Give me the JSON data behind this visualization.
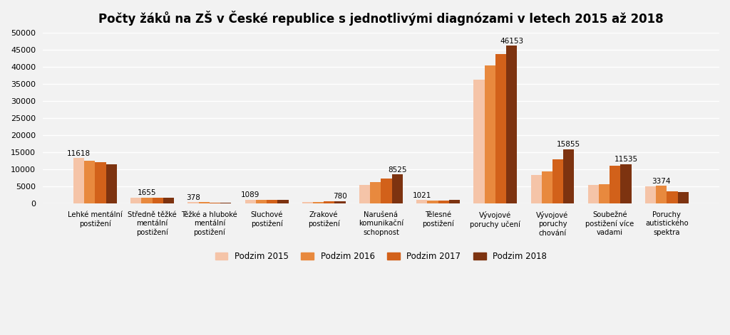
{
  "title": "Počty žáků na ZŠ v České republice s jednotlivými diagnózami v letech 2015 až 2018",
  "categories": [
    "Lehké mentální\npostižení",
    "Středně těžké\nmentální\npostižení",
    "Těžké a hluboké\nmentální\npostižení",
    "Sluchové\npostižení",
    "Zrakové\npostižení",
    "Narušená\nkomunikační\nschopnost",
    "Tělesné\npostižení",
    "Vývojové\nporuchy učení",
    "Vývojové\nporuchy\nchování",
    "Soubežné\npostižení více\nvadami",
    "Poruchy\nautistického\nspektra"
  ],
  "series": {
    "Podzim 2015": [
      13300,
      1700,
      430,
      1100,
      450,
      5500,
      1050,
      36200,
      8300,
      5500,
      5100
    ],
    "Podzim 2016": [
      12600,
      1750,
      420,
      1080,
      500,
      6400,
      1000,
      40500,
      9400,
      5800,
      5200
    ],
    "Podzim 2017": [
      12200,
      1720,
      390,
      1060,
      680,
      7300,
      980,
      43800,
      13000,
      11000,
      3700
    ],
    "Podzim 2018": [
      11618,
      1655,
      378,
      1089,
      780,
      8525,
      1021,
      46153,
      15855,
      11535,
      3374
    ]
  },
  "colors": {
    "Podzim 2015": "#F5C4A8",
    "Podzim 2016": "#E8893E",
    "Podzim 2017": "#D2611A",
    "Podzim 2018": "#7D3310"
  },
  "annotations": {
    "Lehké mentální\npostižení": 11618,
    "Středně těžké\nmentální\npostižení": 1655,
    "Těžké a hluboké\nmentální\npostižení": 378,
    "Sluchové\npostižení": 1089,
    "Zrakové\npostižení": 780,
    "Narušená\nkomunikační\nschopnost": 8525,
    "Tělesné\npostižení": 1021,
    "Vývojové\nporuchy učení": 46153,
    "Vývojové\nporuchy\nchování": 15855,
    "Soubežné\npostižení více\nvadami": 11535,
    "Poruchy\nautistického\nspektra": 3374
  },
  "annotation_series_idx": {
    "Lehké mentální\npostižení": 2,
    "Středně těžké\nmentální\npostižení": 3,
    "Těžké a hluboké\nmentální\npostižení": 3,
    "Sluchové\npostižení": 3,
    "Zrakové\npostižení": 3,
    "Narušená\nkomunikační\nschopnost": 3,
    "Tělesné\npostižení": 3,
    "Vývojové\nporuchy učení": 3,
    "Vývojové\nporuchy\nchování": 3,
    "Soubežné\npostižení více\nvadami": 3,
    "Poruchy\nautistického\nspektra": 3
  },
  "ylim": [
    0,
    50000
  ],
  "yticks": [
    0,
    5000,
    10000,
    15000,
    20000,
    25000,
    30000,
    35000,
    40000,
    45000,
    50000
  ],
  "background_color": "#F2F2F2",
  "plot_area_color": "#F2F2F2",
  "title_fontsize": 12,
  "legend_labels": [
    "Podzim 2015",
    "Podzim 2016",
    "Podzim 2017",
    "Podzim 2018"
  ]
}
